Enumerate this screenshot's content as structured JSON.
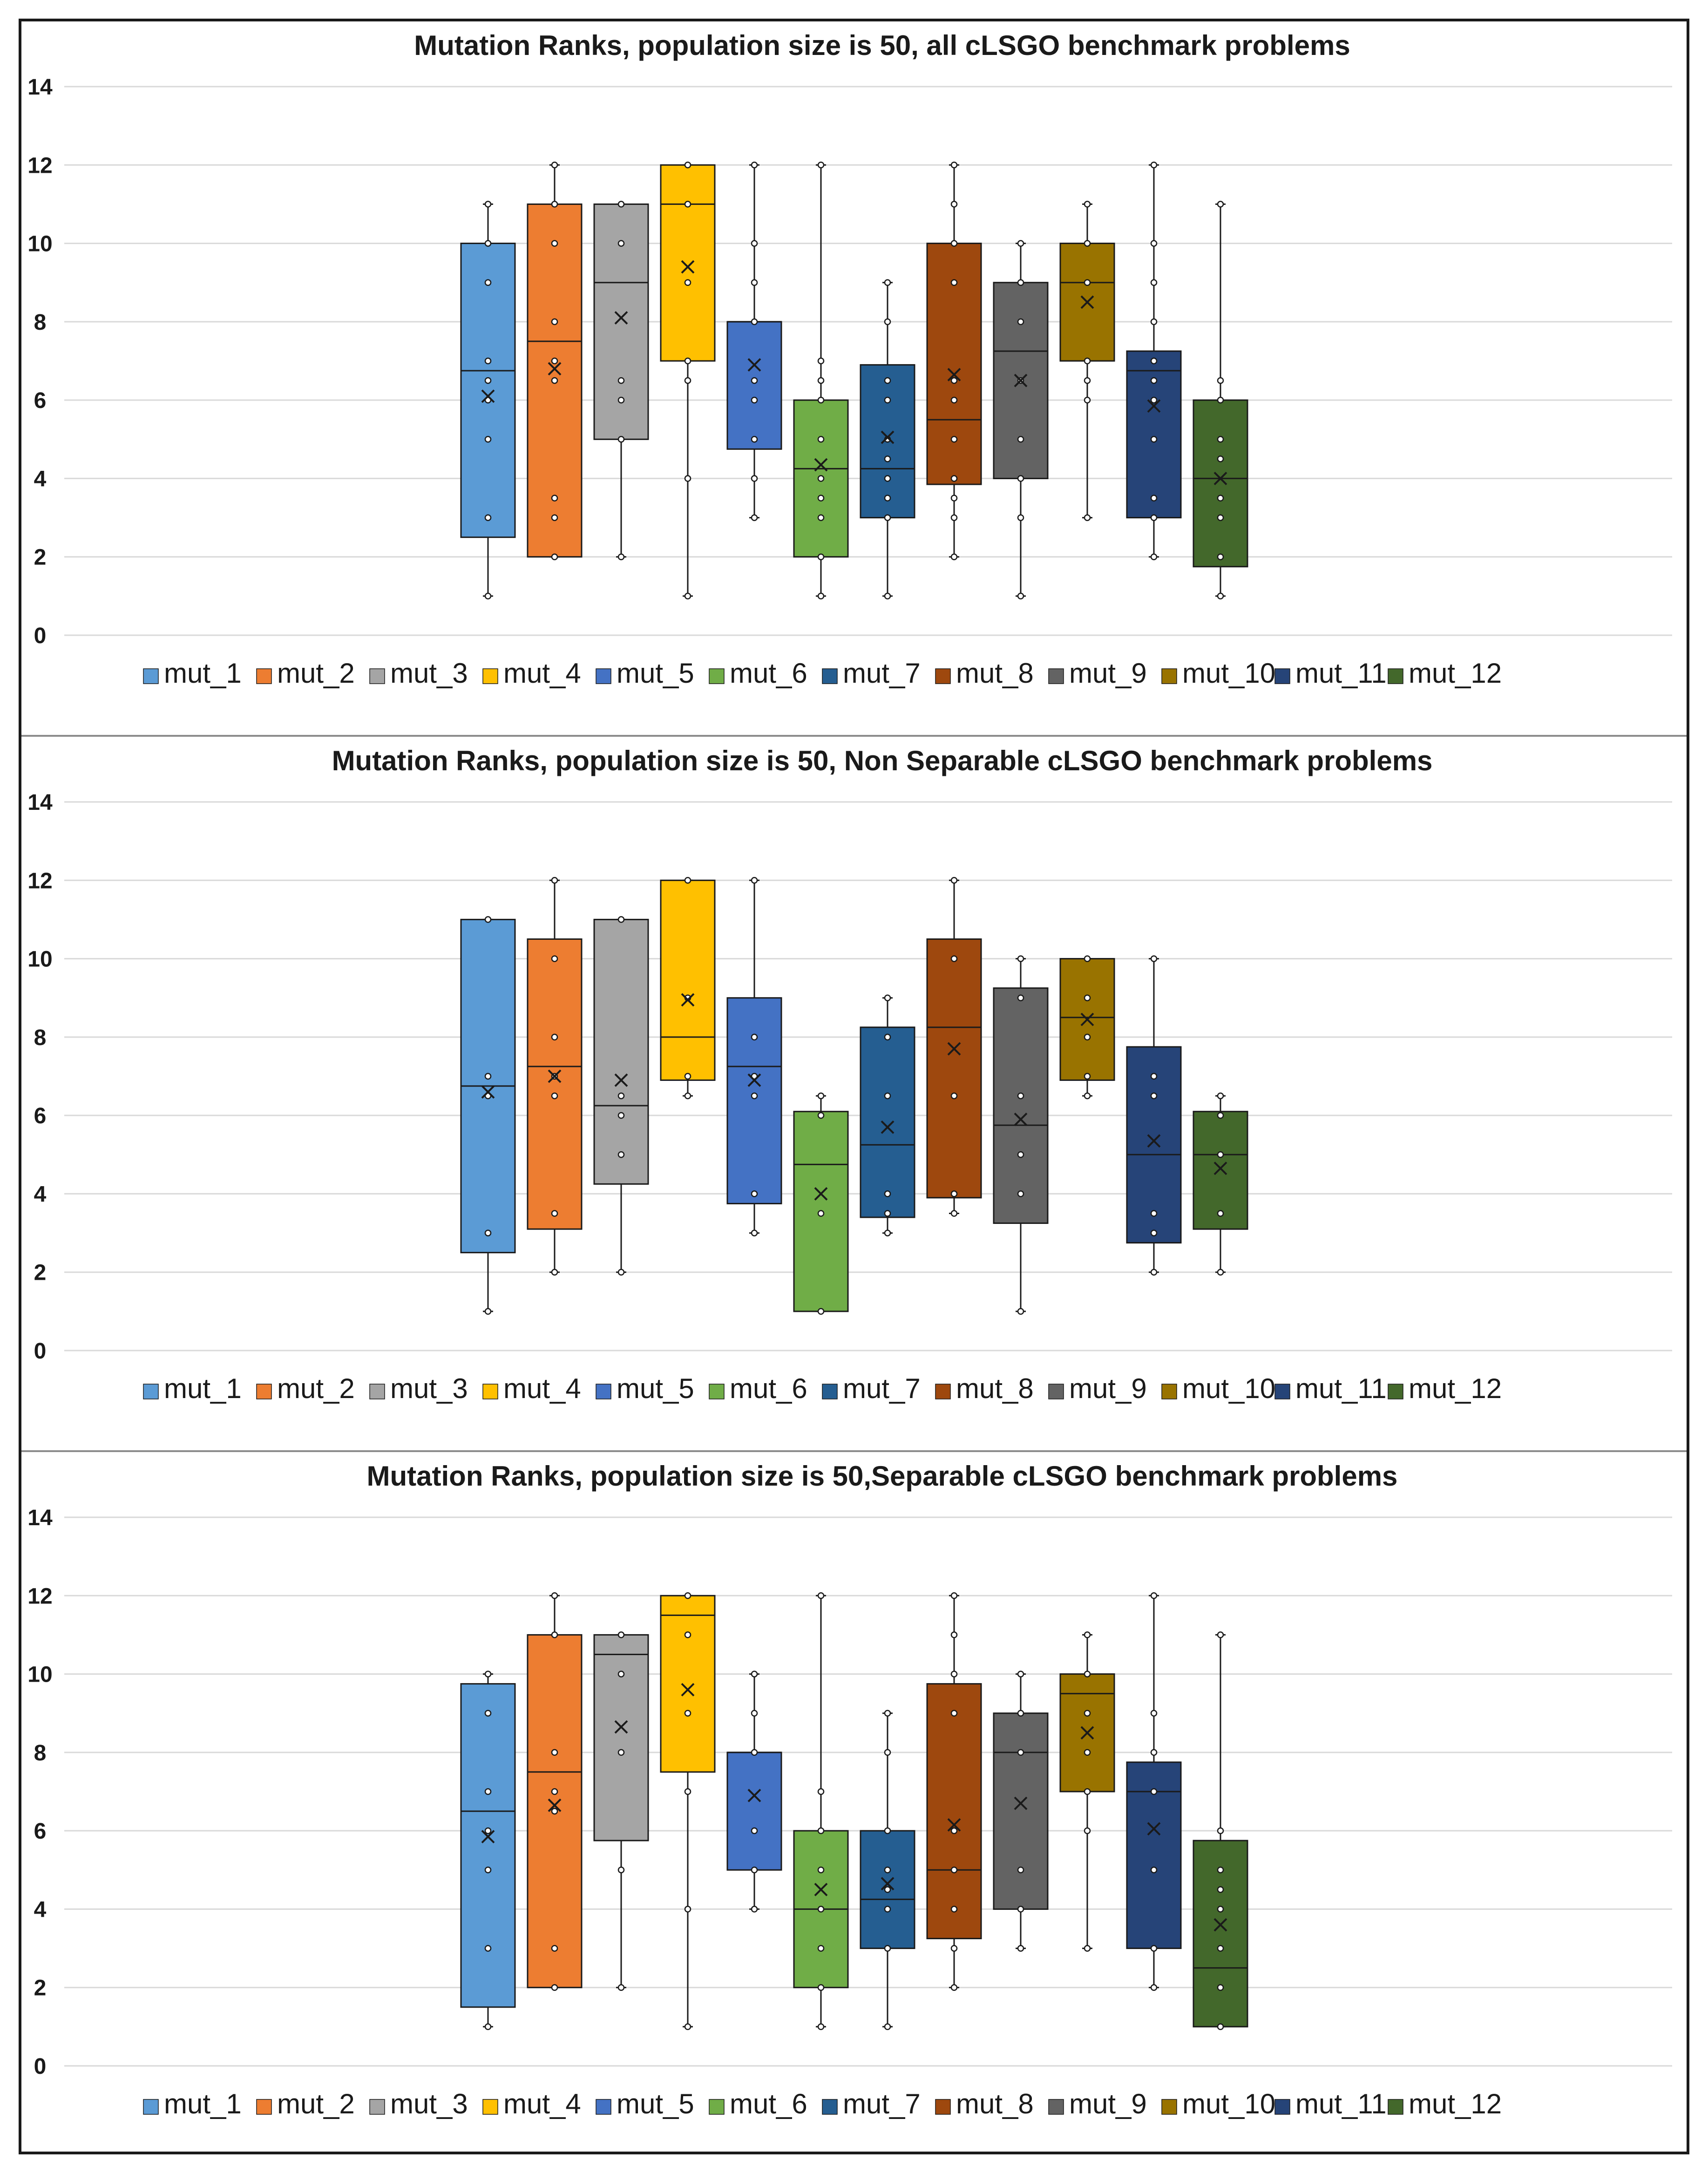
{
  "chart_data": [
    {
      "type": "boxplot",
      "title": "Mutation Ranks, population size is 50, all cLSGO benchmark problems",
      "ylim": [
        0,
        14
      ],
      "yticks": [
        0,
        2,
        4,
        6,
        8,
        10,
        12,
        14
      ],
      "grid": true,
      "legend_position": "bottom",
      "series": [
        {
          "name": "mut_1",
          "color": "#5b9bd5",
          "min": 1,
          "q1": 2.5,
          "median": 6.75,
          "q3": 10,
          "max": 11,
          "mean": 6.1,
          "points": [
            1,
            3,
            5,
            6,
            6.5,
            7,
            9,
            10,
            11
          ]
        },
        {
          "name": "mut_2",
          "color": "#ed7d31",
          "min": 2,
          "q1": 2,
          "median": 7.5,
          "q3": 11,
          "max": 12,
          "mean": 6.8,
          "points": [
            2,
            3,
            3.5,
            6.5,
            7,
            8,
            10,
            11,
            12
          ]
        },
        {
          "name": "mut_3",
          "color": "#a5a5a5",
          "min": 2,
          "q1": 5,
          "median": 9,
          "q3": 11,
          "max": 11,
          "mean": 8.1,
          "points": [
            2,
            5,
            6,
            6.5,
            10,
            11
          ]
        },
        {
          "name": "mut_4",
          "color": "#ffc000",
          "min": 1,
          "q1": 7,
          "median": 11,
          "q3": 12,
          "max": 12,
          "mean": 9.4,
          "points": [
            1,
            4,
            6.5,
            7,
            9,
            11,
            12
          ]
        },
        {
          "name": "mut_5",
          "color": "#4472c4",
          "min": 3,
          "q1": 4.75,
          "median": 8,
          "q3": 8,
          "max": 12,
          "mean": 6.9,
          "points": [
            3,
            4,
            5,
            6,
            6.5,
            8,
            9,
            10,
            12
          ]
        },
        {
          "name": "mut_6",
          "color": "#70ad47",
          "min": 1,
          "q1": 2,
          "median": 4.25,
          "q3": 6,
          "max": 12,
          "mean": 4.35,
          "points": [
            1,
            2,
            3,
            3.5,
            4,
            5,
            6,
            6.5,
            7,
            12
          ]
        },
        {
          "name": "mut_7",
          "color": "#255e91",
          "min": 1,
          "q1": 3,
          "median": 4.25,
          "q3": 6.9,
          "max": 9,
          "mean": 5.05,
          "points": [
            1,
            3,
            3.5,
            4,
            4.5,
            5,
            6,
            6.5,
            8,
            9
          ]
        },
        {
          "name": "mut_8",
          "color": "#9e480e",
          "min": 2,
          "q1": 3.85,
          "median": 5.5,
          "q3": 10,
          "max": 12,
          "mean": 6.65,
          "points": [
            2,
            3,
            3.5,
            4,
            5,
            6,
            6.5,
            9,
            10,
            11,
            12
          ]
        },
        {
          "name": "mut_9",
          "color": "#636363",
          "min": 1,
          "q1": 4,
          "median": 7.25,
          "q3": 9,
          "max": 10,
          "mean": 6.5,
          "points": [
            1,
            3,
            4,
            5,
            6.5,
            8,
            9,
            10
          ]
        },
        {
          "name": "mut_10",
          "color": "#997300",
          "min": 3,
          "q1": 7,
          "median": 9,
          "q3": 10,
          "max": 11,
          "mean": 8.5,
          "points": [
            3,
            6,
            6.5,
            7,
            9,
            10,
            11
          ]
        },
        {
          "name": "mut_11",
          "color": "#264478",
          "min": 2,
          "q1": 3,
          "median": 6.75,
          "q3": 7.25,
          "max": 12,
          "mean": 5.85,
          "points": [
            2,
            3,
            3.5,
            5,
            6,
            6.5,
            7,
            8,
            9,
            10,
            12
          ]
        },
        {
          "name": "mut_12",
          "color": "#43682b",
          "min": 1,
          "q1": 1.75,
          "median": 4,
          "q3": 6,
          "max": 11,
          "mean": 4,
          "points": [
            1,
            2,
            3,
            3.5,
            4.5,
            5,
            6,
            6.5,
            11
          ]
        }
      ]
    },
    {
      "type": "boxplot",
      "title": "Mutation Ranks, population size is 50, Non Separable cLSGO benchmark problems",
      "ylim": [
        0,
        14
      ],
      "yticks": [
        0,
        2,
        4,
        6,
        8,
        10,
        12,
        14
      ],
      "grid": true,
      "legend_position": "bottom",
      "series": [
        {
          "name": "mut_1",
          "color": "#5b9bd5",
          "min": 1,
          "q1": 2.5,
          "median": 6.75,
          "q3": 11,
          "max": 11,
          "mean": 6.6,
          "points": [
            1,
            3,
            6.5,
            7,
            11
          ]
        },
        {
          "name": "mut_2",
          "color": "#ed7d31",
          "min": 2,
          "q1": 3.1,
          "median": 7.25,
          "q3": 10.5,
          "max": 12,
          "mean": 7,
          "points": [
            2,
            3.5,
            6.5,
            7,
            8,
            10,
            12
          ]
        },
        {
          "name": "mut_3",
          "color": "#a5a5a5",
          "min": 2,
          "q1": 4.25,
          "median": 6.25,
          "q3": 11,
          "max": 11,
          "mean": 6.9,
          "points": [
            2,
            5,
            6,
            6.5,
            11
          ]
        },
        {
          "name": "mut_4",
          "color": "#ffc000",
          "min": 6.5,
          "q1": 6.9,
          "median": 8,
          "q3": 12,
          "max": 12,
          "mean": 8.95,
          "points": [
            6.5,
            7,
            9,
            12
          ]
        },
        {
          "name": "mut_5",
          "color": "#4472c4",
          "min": 3,
          "q1": 3.75,
          "median": 7.25,
          "q3": 9,
          "max": 12,
          "mean": 6.9,
          "points": [
            3,
            4,
            6.5,
            7,
            8,
            12
          ]
        },
        {
          "name": "mut_6",
          "color": "#70ad47",
          "min": 1,
          "q1": 1,
          "median": 4.75,
          "q3": 6.1,
          "max": 6.5,
          "mean": 4,
          "points": [
            1,
            3.5,
            6,
            6.5
          ]
        },
        {
          "name": "mut_7",
          "color": "#255e91",
          "min": 3,
          "q1": 3.4,
          "median": 5.25,
          "q3": 8.25,
          "max": 9,
          "mean": 5.7,
          "points": [
            3,
            3.5,
            4,
            6.5,
            8,
            9
          ]
        },
        {
          "name": "mut_8",
          "color": "#9e480e",
          "min": 3.5,
          "q1": 3.9,
          "median": 8.25,
          "q3": 10.5,
          "max": 12,
          "mean": 7.7,
          "points": [
            3.5,
            4,
            6.5,
            10,
            12
          ]
        },
        {
          "name": "mut_9",
          "color": "#636363",
          "min": 1,
          "q1": 3.25,
          "median": 5.75,
          "q3": 9.25,
          "max": 10,
          "mean": 5.9,
          "points": [
            1,
            4,
            5,
            6.5,
            9,
            10
          ]
        },
        {
          "name": "mut_10",
          "color": "#997300",
          "min": 6.5,
          "q1": 6.9,
          "median": 8.5,
          "q3": 10,
          "max": 10,
          "mean": 8.45,
          "points": [
            6.5,
            7,
            8,
            9,
            10
          ]
        },
        {
          "name": "mut_11",
          "color": "#264478",
          "min": 2,
          "q1": 2.75,
          "median": 5,
          "q3": 7.75,
          "max": 10,
          "mean": 5.35,
          "points": [
            2,
            3,
            3.5,
            6.5,
            7,
            10
          ]
        },
        {
          "name": "mut_12",
          "color": "#43682b",
          "min": 2,
          "q1": 3.1,
          "median": 5,
          "q3": 6.1,
          "max": 6.5,
          "mean": 4.65,
          "points": [
            2,
            3.5,
            5,
            6,
            6.5
          ]
        }
      ]
    },
    {
      "type": "boxplot",
      "title": "Mutation Ranks, population size is 50,Separable cLSGO benchmark problems",
      "ylim": [
        0,
        14
      ],
      "yticks": [
        0,
        2,
        4,
        6,
        8,
        10,
        12,
        14
      ],
      "grid": true,
      "legend_position": "bottom",
      "series": [
        {
          "name": "mut_1",
          "color": "#5b9bd5",
          "min": 1,
          "q1": 1.5,
          "median": 6.5,
          "q3": 9.75,
          "max": 10,
          "mean": 5.85,
          "points": [
            1,
            3,
            5,
            6,
            7,
            9,
            10
          ]
        },
        {
          "name": "mut_2",
          "color": "#ed7d31",
          "min": 2,
          "q1": 2,
          "median": 7.5,
          "q3": 11,
          "max": 12,
          "mean": 6.65,
          "points": [
            2,
            3,
            6.5,
            7,
            8,
            11,
            12
          ]
        },
        {
          "name": "mut_3",
          "color": "#a5a5a5",
          "min": 2,
          "q1": 5.75,
          "median": 10.5,
          "q3": 11,
          "max": 11,
          "mean": 8.65,
          "points": [
            2,
            5,
            8,
            10,
            11
          ]
        },
        {
          "name": "mut_4",
          "color": "#ffc000",
          "min": 1,
          "q1": 7.5,
          "median": 11.5,
          "q3": 12,
          "max": 12,
          "mean": 9.6,
          "points": [
            1,
            4,
            7,
            9,
            11,
            12
          ]
        },
        {
          "name": "mut_5",
          "color": "#4472c4",
          "min": 4,
          "q1": 5,
          "median": 8,
          "q3": 8,
          "max": 10,
          "mean": 6.9,
          "points": [
            4,
            5,
            6,
            8,
            9,
            10
          ]
        },
        {
          "name": "mut_6",
          "color": "#70ad47",
          "min": 1,
          "q1": 2,
          "median": 4,
          "q3": 6,
          "max": 12,
          "mean": 4.5,
          "points": [
            1,
            2,
            3,
            4,
            5,
            6,
            7,
            12
          ]
        },
        {
          "name": "mut_7",
          "color": "#255e91",
          "min": 1,
          "q1": 3,
          "median": 4.25,
          "q3": 6,
          "max": 9,
          "mean": 4.65,
          "points": [
            1,
            3,
            4,
            4.5,
            5,
            6,
            8,
            9
          ]
        },
        {
          "name": "mut_8",
          "color": "#9e480e",
          "min": 2,
          "q1": 3.25,
          "median": 5,
          "q3": 9.75,
          "max": 12,
          "mean": 6.15,
          "points": [
            2,
            3,
            4,
            5,
            6,
            9,
            10,
            11,
            12
          ]
        },
        {
          "name": "mut_9",
          "color": "#636363",
          "min": 3,
          "q1": 4,
          "median": 8,
          "q3": 9,
          "max": 10,
          "mean": 6.7,
          "points": [
            3,
            4,
            5,
            8,
            9,
            10
          ]
        },
        {
          "name": "mut_10",
          "color": "#997300",
          "min": 3,
          "q1": 7,
          "median": 9.5,
          "q3": 10,
          "max": 11,
          "mean": 8.5,
          "points": [
            3,
            6,
            7,
            8,
            9,
            10,
            11
          ]
        },
        {
          "name": "mut_11",
          "color": "#264478",
          "min": 2,
          "q1": 3,
          "median": 7,
          "q3": 7.75,
          "max": 12,
          "mean": 6.05,
          "points": [
            2,
            3,
            5,
            7,
            8,
            9,
            12
          ]
        },
        {
          "name": "mut_12",
          "color": "#43682b",
          "min": 1,
          "q1": 1,
          "median": 2.5,
          "q3": 5.75,
          "max": 11,
          "mean": 3.6,
          "points": [
            1,
            2,
            3,
            4,
            4.5,
            5,
            6,
            11
          ]
        }
      ]
    }
  ]
}
